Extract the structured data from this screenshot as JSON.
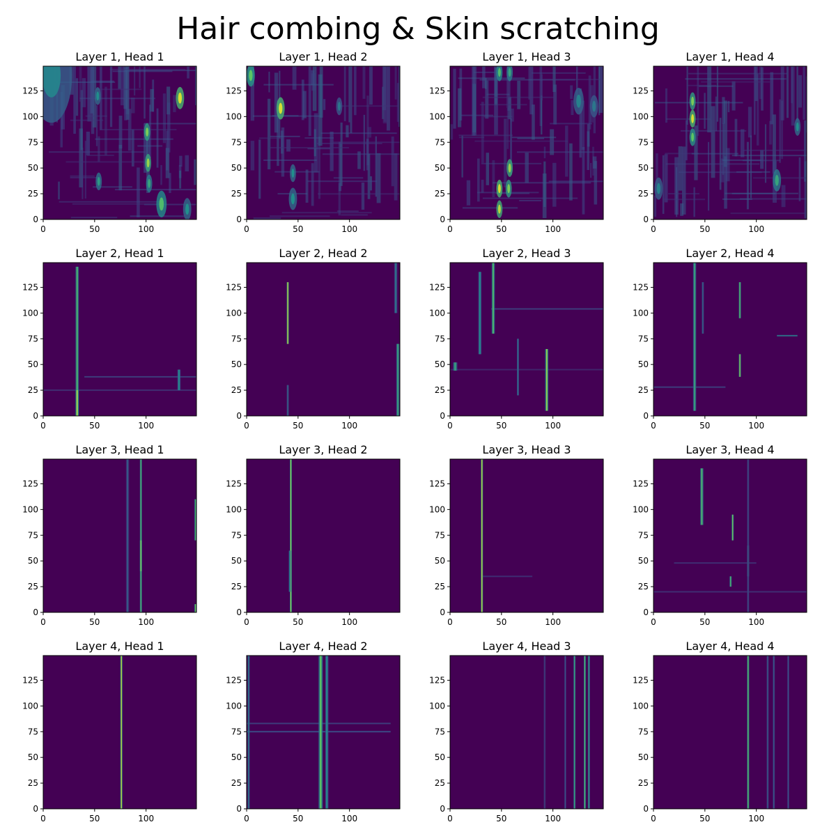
{
  "suptitle": "Hair combing & Skin scratching",
  "colors": {
    "colormap": "viridis",
    "background": "#440154",
    "frame": "#000000"
  },
  "chart_data": [
    {
      "type": "heatmap",
      "title": "Layer 1, Head 1",
      "xlim": [
        0,
        149
      ],
      "ylim": [
        0,
        149
      ],
      "xticks": [
        0,
        50,
        100
      ],
      "yticks": [
        0,
        25,
        50,
        75,
        100,
        125
      ],
      "pattern": "diffuse",
      "highlights": [
        {
          "x": 8,
          "y": 140,
          "w": 20,
          "i": 0.45
        },
        {
          "x": 53,
          "y": 120,
          "w": 3,
          "i": 0.5
        },
        {
          "x": 54,
          "y": 37,
          "w": 3,
          "i": 0.55
        },
        {
          "x": 101,
          "y": 85,
          "w": 3,
          "i": 0.8
        },
        {
          "x": 102,
          "y": 55,
          "w": 3,
          "i": 0.85
        },
        {
          "x": 103,
          "y": 35,
          "w": 3,
          "i": 0.6
        },
        {
          "x": 133,
          "y": 118,
          "w": 4,
          "i": 0.95
        },
        {
          "x": 115,
          "y": 15,
          "w": 5,
          "i": 0.7
        },
        {
          "x": 140,
          "y": 10,
          "w": 4,
          "i": 0.5
        }
      ]
    },
    {
      "type": "heatmap",
      "title": "Layer 1, Head 2",
      "xlim": [
        0,
        149
      ],
      "ylim": [
        0,
        149
      ],
      "xticks": [
        0,
        50,
        100
      ],
      "yticks": [
        0,
        25,
        50,
        75,
        100,
        125
      ],
      "pattern": "diffuse",
      "highlights": [
        {
          "x": 4,
          "y": 140,
          "w": 4,
          "i": 0.75
        },
        {
          "x": 33,
          "y": 108,
          "w": 4,
          "i": 0.95
        },
        {
          "x": 45,
          "y": 45,
          "w": 3,
          "i": 0.5
        },
        {
          "x": 45,
          "y": 20,
          "w": 4,
          "i": 0.5
        },
        {
          "x": 90,
          "y": 110,
          "w": 3,
          "i": 0.4
        }
      ]
    },
    {
      "type": "heatmap",
      "title": "Layer 1, Head 3",
      "xlim": [
        0,
        149
      ],
      "ylim": [
        0,
        149
      ],
      "xticks": [
        0,
        50,
        100
      ],
      "yticks": [
        0,
        25,
        50,
        75,
        100,
        125
      ],
      "pattern": "diffuse",
      "highlights": [
        {
          "x": 48,
          "y": 30,
          "w": 3,
          "i": 0.95
        },
        {
          "x": 48,
          "y": 10,
          "w": 3,
          "i": 0.9
        },
        {
          "x": 58,
          "y": 50,
          "w": 3,
          "i": 0.85
        },
        {
          "x": 57,
          "y": 30,
          "w": 3,
          "i": 0.8
        },
        {
          "x": 48,
          "y": 143,
          "w": 3,
          "i": 0.7
        },
        {
          "x": 58,
          "y": 143,
          "w": 3,
          "i": 0.6
        },
        {
          "x": 125,
          "y": 115,
          "w": 5,
          "i": 0.45
        },
        {
          "x": 140,
          "y": 110,
          "w": 4,
          "i": 0.4
        }
      ]
    },
    {
      "type": "heatmap",
      "title": "Layer 1, Head 4",
      "xlim": [
        0,
        149
      ],
      "ylim": [
        0,
        149
      ],
      "xticks": [
        0,
        50,
        100
      ],
      "yticks": [
        0,
        25,
        50,
        75,
        100,
        125
      ],
      "pattern": "diffuse",
      "highlights": [
        {
          "x": 38,
          "y": 98,
          "w": 3,
          "i": 0.95
        },
        {
          "x": 38,
          "y": 115,
          "w": 3,
          "i": 0.8
        },
        {
          "x": 38,
          "y": 80,
          "w": 3,
          "i": 0.75
        },
        {
          "x": 120,
          "y": 38,
          "w": 4,
          "i": 0.6
        },
        {
          "x": 140,
          "y": 90,
          "w": 3,
          "i": 0.5
        },
        {
          "x": 5,
          "y": 30,
          "w": 4,
          "i": 0.45
        }
      ]
    },
    {
      "type": "heatmap",
      "title": "Layer 2, Head 1",
      "xlim": [
        0,
        149
      ],
      "ylim": [
        0,
        149
      ],
      "xticks": [
        0,
        50,
        100
      ],
      "yticks": [
        0,
        25,
        50,
        75,
        100,
        125
      ],
      "pattern": "sparse",
      "columns": [
        {
          "x": 33,
          "y0": 0,
          "y1": 145,
          "w": 3,
          "i": 0.7
        },
        {
          "x": 33,
          "y0": 0,
          "y1": 25,
          "w": 3,
          "i": 0.9
        },
        {
          "x": 132,
          "y0": 25,
          "y1": 45,
          "w": 3,
          "i": 0.5
        }
      ],
      "rows": [
        {
          "y": 38,
          "x0": 40,
          "x1": 149,
          "i": 0.2
        },
        {
          "y": 25,
          "x0": 0,
          "x1": 149,
          "i": 0.15
        }
      ]
    },
    {
      "type": "heatmap",
      "title": "Layer 2, Head 2",
      "xlim": [
        0,
        149
      ],
      "ylim": [
        0,
        149
      ],
      "xticks": [
        0,
        50,
        100
      ],
      "yticks": [
        0,
        25,
        50,
        75,
        100,
        125
      ],
      "pattern": "sparse",
      "columns": [
        {
          "x": 40,
          "y0": 70,
          "y1": 130,
          "w": 2,
          "i": 0.95
        },
        {
          "x": 40,
          "y0": 0,
          "y1": 30,
          "w": 2,
          "i": 0.35
        },
        {
          "x": 147,
          "y0": 0,
          "y1": 70,
          "w": 3,
          "i": 0.6
        },
        {
          "x": 145,
          "y0": 100,
          "y1": 149,
          "w": 3,
          "i": 0.4
        }
      ],
      "rows": []
    },
    {
      "type": "heatmap",
      "title": "Layer 2, Head 3",
      "xlim": [
        0,
        149
      ],
      "ylim": [
        0,
        149
      ],
      "xticks": [
        0,
        50,
        100
      ],
      "yticks": [
        0,
        25,
        50,
        75,
        100,
        125
      ],
      "pattern": "sparse",
      "columns": [
        {
          "x": 29,
          "y0": 60,
          "y1": 140,
          "w": 3,
          "i": 0.5
        },
        {
          "x": 42,
          "y0": 80,
          "y1": 149,
          "w": 3,
          "i": 0.7
        },
        {
          "x": 94,
          "y0": 5,
          "y1": 65,
          "w": 3,
          "i": 0.85
        },
        {
          "x": 66,
          "y0": 20,
          "y1": 75,
          "w": 2,
          "i": 0.4
        },
        {
          "x": 5,
          "y0": 44,
          "y1": 52,
          "w": 4,
          "i": 0.6
        }
      ],
      "rows": [
        {
          "y": 104,
          "x0": 40,
          "x1": 149,
          "i": 0.2
        },
        {
          "y": 45,
          "x0": 0,
          "x1": 149,
          "i": 0.12
        }
      ]
    },
    {
      "type": "heatmap",
      "title": "Layer 2, Head 4",
      "xlim": [
        0,
        149
      ],
      "ylim": [
        0,
        149
      ],
      "xticks": [
        0,
        50,
        100
      ],
      "yticks": [
        0,
        25,
        50,
        75,
        100,
        125
      ],
      "pattern": "sparse",
      "columns": [
        {
          "x": 40,
          "y0": 5,
          "y1": 149,
          "w": 3,
          "i": 0.6
        },
        {
          "x": 84,
          "y0": 95,
          "y1": 130,
          "w": 2,
          "i": 0.75
        },
        {
          "x": 84,
          "y0": 38,
          "y1": 60,
          "w": 2,
          "i": 0.85
        },
        {
          "x": 48,
          "y0": 80,
          "y1": 130,
          "w": 2,
          "i": 0.35
        }
      ],
      "rows": [
        {
          "y": 28,
          "x0": 0,
          "x1": 70,
          "i": 0.2
        },
        {
          "y": 78,
          "x0": 120,
          "x1": 140,
          "i": 0.4
        }
      ]
    },
    {
      "type": "heatmap",
      "title": "Layer 3, Head 1",
      "xlim": [
        0,
        149
      ],
      "ylim": [
        0,
        149
      ],
      "xticks": [
        0,
        50,
        100
      ],
      "yticks": [
        0,
        25,
        50,
        75,
        100,
        125
      ],
      "pattern": "sparse",
      "columns": [
        {
          "x": 95,
          "y0": 0,
          "y1": 149,
          "w": 2,
          "i": 0.7
        },
        {
          "x": 95,
          "y0": 40,
          "y1": 70,
          "w": 2,
          "i": 0.85
        },
        {
          "x": 82,
          "y0": 0,
          "y1": 149,
          "w": 3,
          "i": 0.3
        },
        {
          "x": 148,
          "y0": 70,
          "y1": 110,
          "w": 2,
          "i": 0.7
        },
        {
          "x": 148,
          "y0": 0,
          "y1": 8,
          "w": 2,
          "i": 0.8
        }
      ],
      "rows": []
    },
    {
      "type": "heatmap",
      "title": "Layer 3, Head 2",
      "xlim": [
        0,
        149
      ],
      "ylim": [
        0,
        149
      ],
      "xticks": [
        0,
        50,
        100
      ],
      "yticks": [
        0,
        25,
        50,
        75,
        100,
        125
      ],
      "pattern": "sparse",
      "columns": [
        {
          "x": 43,
          "y0": 0,
          "y1": 149,
          "w": 2,
          "i": 0.85
        },
        {
          "x": 42,
          "y0": 20,
          "y1": 60,
          "w": 2,
          "i": 0.5
        }
      ],
      "rows": []
    },
    {
      "type": "heatmap",
      "title": "Layer 3, Head 3",
      "xlim": [
        0,
        149
      ],
      "ylim": [
        0,
        149
      ],
      "xticks": [
        0,
        50,
        100
      ],
      "yticks": [
        0,
        25,
        50,
        75,
        100,
        125
      ],
      "pattern": "sparse",
      "columns": [
        {
          "x": 31,
          "y0": 0,
          "y1": 149,
          "w": 2,
          "i": 0.95
        }
      ],
      "rows": [
        {
          "y": 35,
          "x0": 32,
          "x1": 80,
          "i": 0.15
        }
      ]
    },
    {
      "type": "heatmap",
      "title": "Layer 3, Head 4",
      "xlim": [
        0,
        149
      ],
      "ylim": [
        0,
        149
      ],
      "xticks": [
        0,
        50,
        100
      ],
      "yticks": [
        0,
        25,
        50,
        75,
        100,
        125
      ],
      "pattern": "sparse",
      "columns": [
        {
          "x": 47,
          "y0": 85,
          "y1": 140,
          "w": 3,
          "i": 0.7
        },
        {
          "x": 77,
          "y0": 70,
          "y1": 95,
          "w": 2,
          "i": 0.8
        },
        {
          "x": 92,
          "y0": 35,
          "y1": 65,
          "w": 2,
          "i": 0.85
        },
        {
          "x": 75,
          "y0": 25,
          "y1": 35,
          "w": 2,
          "i": 0.7
        },
        {
          "x": 92,
          "y0": 0,
          "y1": 149,
          "w": 2,
          "i": 0.25
        }
      ],
      "rows": [
        {
          "y": 20,
          "x0": 0,
          "x1": 149,
          "i": 0.15
        },
        {
          "y": 48,
          "x0": 20,
          "x1": 100,
          "i": 0.15
        }
      ]
    },
    {
      "type": "heatmap",
      "title": "Layer 4, Head 1",
      "xlim": [
        0,
        149
      ],
      "ylim": [
        0,
        149
      ],
      "xticks": [
        0,
        50,
        100
      ],
      "yticks": [
        0,
        25,
        50,
        75,
        100,
        125
      ],
      "pattern": "sparse",
      "columns": [
        {
          "x": 76,
          "y0": 0,
          "y1": 149,
          "w": 2,
          "i": 0.95
        }
      ],
      "rows": []
    },
    {
      "type": "heatmap",
      "title": "Layer 4, Head 2",
      "xlim": [
        0,
        149
      ],
      "ylim": [
        0,
        149
      ],
      "xticks": [
        0,
        50,
        100
      ],
      "yticks": [
        0,
        25,
        50,
        75,
        100,
        125
      ],
      "pattern": "sparse",
      "columns": [
        {
          "x": 72,
          "y0": 0,
          "y1": 149,
          "w": 4,
          "i": 0.75
        },
        {
          "x": 78,
          "y0": 0,
          "y1": 149,
          "w": 3,
          "i": 0.5
        },
        {
          "x": 2,
          "y0": 0,
          "y1": 149,
          "w": 2,
          "i": 0.45
        }
      ],
      "rows": [
        {
          "y": 75,
          "x0": 0,
          "x1": 140,
          "i": 0.25
        },
        {
          "y": 83,
          "x0": 0,
          "x1": 140,
          "i": 0.2
        }
      ]
    },
    {
      "type": "heatmap",
      "title": "Layer 4, Head 3",
      "xlim": [
        0,
        149
      ],
      "ylim": [
        0,
        149
      ],
      "xticks": [
        0,
        50,
        100
      ],
      "yticks": [
        0,
        25,
        50,
        75,
        100,
        125
      ],
      "pattern": "sparse",
      "columns": [
        {
          "x": 121,
          "y0": 0,
          "y1": 149,
          "w": 2,
          "i": 0.6
        },
        {
          "x": 131,
          "y0": 0,
          "y1": 149,
          "w": 2,
          "i": 0.7
        },
        {
          "x": 135,
          "y0": 0,
          "y1": 149,
          "w": 2,
          "i": 0.55
        },
        {
          "x": 92,
          "y0": 0,
          "y1": 149,
          "w": 2,
          "i": 0.2
        },
        {
          "x": 112,
          "y0": 0,
          "y1": 149,
          "w": 2,
          "i": 0.25
        }
      ],
      "rows": []
    },
    {
      "type": "heatmap",
      "title": "Layer 4, Head 4",
      "xlim": [
        0,
        149
      ],
      "ylim": [
        0,
        149
      ],
      "xticks": [
        0,
        50,
        100
      ],
      "yticks": [
        0,
        25,
        50,
        75,
        100,
        125
      ],
      "pattern": "sparse",
      "columns": [
        {
          "x": 92,
          "y0": 0,
          "y1": 149,
          "w": 2,
          "i": 0.75
        },
        {
          "x": 111,
          "y0": 0,
          "y1": 149,
          "w": 2,
          "i": 0.3
        },
        {
          "x": 117,
          "y0": 0,
          "y1": 149,
          "w": 2,
          "i": 0.3
        },
        {
          "x": 131,
          "y0": 0,
          "y1": 149,
          "w": 2,
          "i": 0.25
        }
      ],
      "rows": []
    }
  ]
}
